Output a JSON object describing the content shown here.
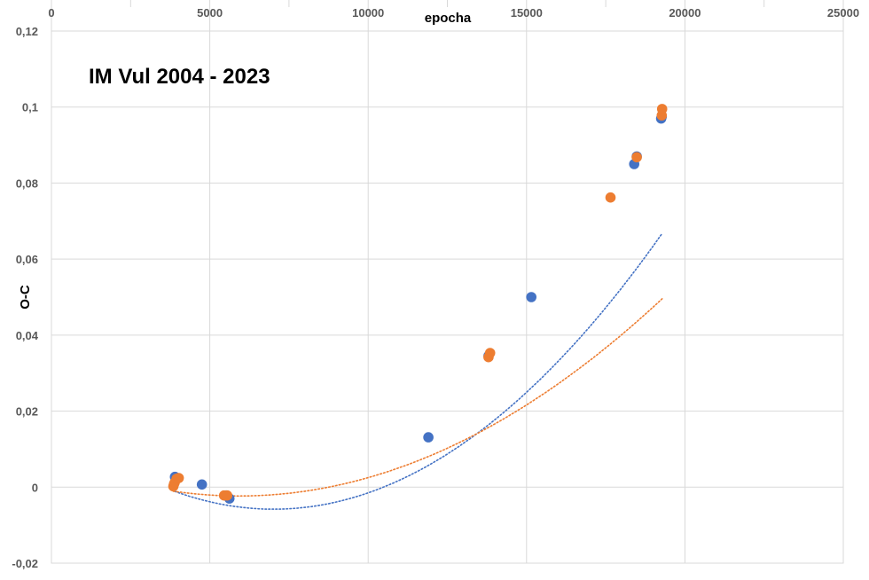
{
  "chart_data": {
    "type": "scatter",
    "title": "IM Vul 2004 - 2023",
    "xlabel": "epocha",
    "ylabel": "O-C",
    "xlim": [
      0,
      25000
    ],
    "ylim": [
      -0.02,
      0.12
    ],
    "x_ticks": [
      0,
      5000,
      10000,
      15000,
      20000,
      25000
    ],
    "x_tick_labels": [
      "0",
      "5000",
      "10000",
      "15000",
      "20000",
      "25000"
    ],
    "y_ticks": [
      -0.02,
      0,
      0.02,
      0.04,
      0.06,
      0.08,
      0.1,
      0.12
    ],
    "y_tick_labels": [
      "-0,02",
      "0",
      "0,02",
      "0,04",
      "0,06",
      "0,08",
      "0,1",
      "0,12"
    ],
    "x_axis_position": "top",
    "grid": true,
    "colors": {
      "series1": "#4472C4",
      "series2": "#ED7D31",
      "grid": "#D9D9D9"
    },
    "series": [
      {
        "color": "#4472C4",
        "points": [
          [
            3900,
            0.0027
          ],
          [
            4750,
            0.0007
          ],
          [
            5520,
            -0.0022
          ],
          [
            5620,
            -0.003
          ],
          [
            11900,
            0.0131
          ],
          [
            13800,
            0.0345
          ],
          [
            15150,
            0.05
          ],
          [
            18400,
            0.085
          ],
          [
            18480,
            0.087
          ],
          [
            19250,
            0.097
          ],
          [
            19270,
            0.0975
          ]
        ],
        "trendline": {
          "kind": "polynomial-2",
          "coefficients": [
            0.0179,
            -6.76e-06,
            4.82e-10
          ],
          "x_range": [
            3900,
            19270
          ]
        }
      },
      {
        "color": "#ED7D31",
        "points": [
          [
            3850,
            0.0002
          ],
          [
            3870,
            0.0008
          ],
          [
            3890,
            0.0012
          ],
          [
            3950,
            0.0022
          ],
          [
            4020,
            0.0024
          ],
          [
            5450,
            -0.0022
          ],
          [
            5550,
            -0.0022
          ],
          [
            13800,
            0.0342
          ],
          [
            13850,
            0.0353
          ],
          [
            17650,
            0.0762
          ],
          [
            18480,
            0.0868
          ],
          [
            19270,
            0.0978
          ],
          [
            19280,
            0.0995
          ]
        ],
        "trendline": {
          "kind": "polynomial-2",
          "coefficients": [
            0.0079,
            -3.45e-06,
            2.91e-10
          ],
          "x_range": [
            3850,
            19280
          ]
        }
      }
    ]
  }
}
